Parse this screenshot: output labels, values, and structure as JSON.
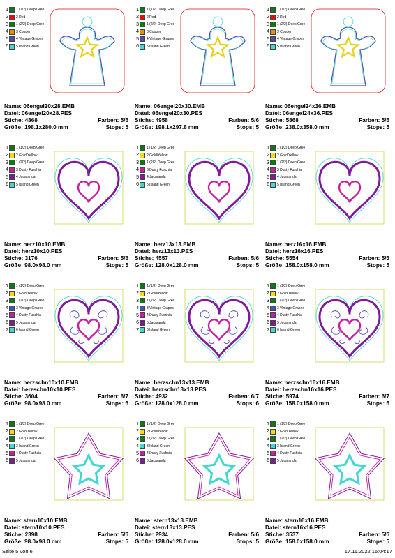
{
  "labels": {
    "name": "Name:",
    "datei": "Datei:",
    "stiche": "Stiche:",
    "groesse": "Größe:",
    "farben": "Farben:",
    "stops": "Stops:"
  },
  "footer": {
    "page": "Seite 5 von 6",
    "timestamp": "17.11.2022 16:04:17"
  },
  "colors": {
    "Deep Gree": "#0a7a12",
    "Red": "#e01010",
    "Copper": "#e0900c",
    "Vintage Grapes": "#4a50b0",
    "Island Green": "#40d8d0",
    "Gold/Yellow": "#f0dc10",
    "Dusty Fuschia": "#c81fa0",
    "Jacaranda": "#8018a0"
  },
  "rows": [
    {
      "design": "angel",
      "legend": [
        {
          "num": "1",
          "label": "1 (1/2) Deep Gree",
          "color": "Deep Gree"
        },
        {
          "num": "2",
          "label": "2 Red",
          "color": "Red"
        },
        {
          "num": "3",
          "label": "1 (2/2) Deep Gree",
          "color": "Deep Gree"
        },
        {
          "num": "4",
          "label": "3 Copper",
          "color": "Copper"
        },
        {
          "num": "5",
          "label": "4 Vintage Grapes",
          "color": "Vintage Grapes"
        },
        {
          "num": "6",
          "label": "5 Island Green",
          "color": "Island Green"
        }
      ],
      "cells": [
        {
          "name": "06engel20x28.EMB",
          "datei": "06engel20x28.PES",
          "stiche": "4868",
          "farben": "5/6",
          "groesse": "198.1x280.0 mm",
          "stops": "5"
        },
        {
          "name": "06engel20x30.EMB",
          "datei": "06engel20x30.PES",
          "stiche": "4958",
          "farben": "5/6",
          "groesse": "198.1x297.8 mm",
          "stops": "5"
        },
        {
          "name": "06engel24x36.EMB",
          "datei": "06engel24x36.PES",
          "stiche": "5868",
          "farben": "5/6",
          "groesse": "238.0x358.0 mm",
          "stops": "5"
        }
      ]
    },
    {
      "design": "heart",
      "legend": [
        {
          "num": "1",
          "label": "1 (1/2) Deep Gree",
          "color": "Deep Gree"
        },
        {
          "num": "2",
          "label": "2 Gold/Yellow",
          "color": "Gold/Yellow"
        },
        {
          "num": "3",
          "label": "1 (2/2) Deep Gree",
          "color": "Deep Gree"
        },
        {
          "num": "4",
          "label": "3 Dusty Fuschia",
          "color": "Dusty Fuschia"
        },
        {
          "num": "5",
          "label": "4 Jacaranda",
          "color": "Jacaranda"
        },
        {
          "num": "6",
          "label": "5 Island Green",
          "color": "Island Green"
        }
      ],
      "cells": [
        {
          "name": "herz10x10.EMB",
          "datei": "herz10x10.PES",
          "stiche": "3176",
          "farben": "5/6",
          "groesse": "98.0x98.0 mm",
          "stops": "5"
        },
        {
          "name": "herz13x13.EMB",
          "datei": "herz13x13.PES",
          "stiche": "4557",
          "farben": "5/6",
          "groesse": "128.0x128.0 mm",
          "stops": "5"
        },
        {
          "name": "herz16x16.EMB",
          "datei": "herz16x16.PES",
          "stiche": "5554",
          "farben": "5/6",
          "groesse": "158.0x158.0 mm",
          "stops": "5"
        }
      ]
    },
    {
      "design": "heartswirl",
      "legend": [
        {
          "num": "1",
          "label": "1 (1/2) Deep Gree",
          "color": "Deep Gree"
        },
        {
          "num": "2",
          "label": "2 Gold/Yellow",
          "color": "Gold/Yellow"
        },
        {
          "num": "3",
          "label": "1 (2/2) Deep Gree",
          "color": "Deep Gree"
        },
        {
          "num": "4",
          "label": "3 Vintage Grapes",
          "color": "Vintage Grapes"
        },
        {
          "num": "5",
          "label": "4 Dusty Fuschia",
          "color": "Dusty Fuschia"
        },
        {
          "num": "6",
          "label": "5 Jacaranda",
          "color": "Jacaranda"
        },
        {
          "num": "7",
          "label": "6 Island Green",
          "color": "Island Green"
        }
      ],
      "cells": [
        {
          "name": "herzschn10x10.EMB",
          "datei": "herzschn10x10.PES",
          "stiche": "3604",
          "farben": "6/7",
          "groesse": "98.0x98.0 mm",
          "stops": "6"
        },
        {
          "name": "herzschn13x13.EMB",
          "datei": "herzschn13x13.PES",
          "stiche": "4932",
          "farben": "6/7",
          "groesse": "128.0x128.0 mm",
          "stops": "6"
        },
        {
          "name": "herzschn16x16.EMB",
          "datei": "herzschn16x16.PES",
          "stiche": "5974",
          "farben": "6/7",
          "groesse": "158.0x158.0 mm",
          "stops": "6"
        }
      ]
    },
    {
      "design": "star",
      "legend": [
        {
          "num": "1",
          "label": "1 (1/2) Deep Gree",
          "color": "Deep Gree"
        },
        {
          "num": "2",
          "label": "2 Gold/Yellow",
          "color": "Gold/Yellow"
        },
        {
          "num": "3",
          "label": "1 (2/2) Deep Gree",
          "color": "Deep Gree"
        },
        {
          "num": "4",
          "label": "3 Island Green",
          "color": "Island Green"
        },
        {
          "num": "5",
          "label": "4 Dusty Fuchsia",
          "color": "Dusty Fuschia"
        },
        {
          "num": "6",
          "label": "5 Jacaranda",
          "color": "Jacaranda"
        }
      ],
      "cells": [
        {
          "name": "stern10x10.EMB",
          "datei": "stern10x10.PES",
          "stiche": "2398",
          "farben": "5/6",
          "groesse": "98.0x98.0 mm",
          "stops": "5"
        },
        {
          "name": "stern13x13.EMB",
          "datei": "stern13x13.PES",
          "stiche": "2934",
          "farben": "5/6",
          "groesse": "128.0x128.0 mm",
          "stops": "5"
        },
        {
          "name": "stern16x16.EMB",
          "datei": "stern16x16.PES",
          "stiche": "3537",
          "farben": "5/6",
          "groesse": "158.0x158.0 mm",
          "stops": "5"
        }
      ]
    }
  ]
}
